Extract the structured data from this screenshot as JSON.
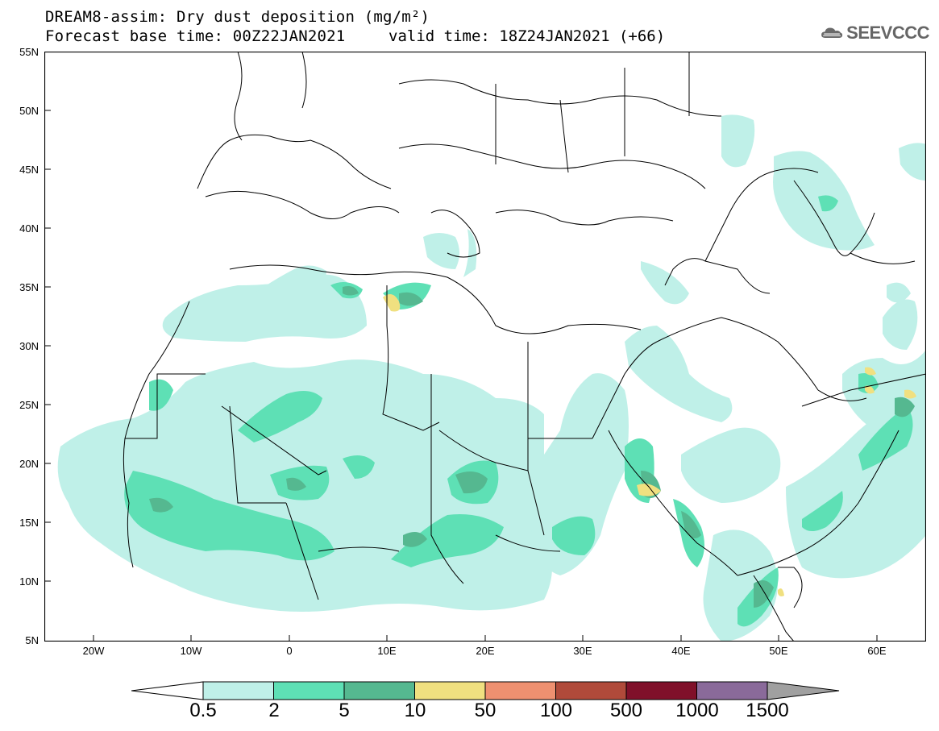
{
  "header": {
    "title": "DREAM8-assim: Dry dust deposition (mg/m²)",
    "base_time": "Forecast base time: 00Z22JAN2021",
    "valid_time": "valid time: 18Z24JAN2021 (+66)",
    "logo_text": "SEEVCCC",
    "logo_icon": "cloud-icon"
  },
  "axes": {
    "lat_labels": [
      "55N",
      "50N",
      "45N",
      "40N",
      "35N",
      "30N",
      "25N",
      "20N",
      "15N",
      "10N",
      "5N"
    ],
    "lon_labels": [
      "20W",
      "10W",
      "0",
      "10E",
      "20E",
      "30E",
      "40E",
      "50E",
      "60E"
    ]
  },
  "legend": {
    "labels": [
      "0.5",
      "2",
      "5",
      "10",
      "50",
      "100",
      "500",
      "1000",
      "1500"
    ],
    "colors": [
      "#bff0e8",
      "#5ee0b5",
      "#55b890",
      "#f0e080",
      "#ee9070",
      "#b04a3a",
      "#80102a",
      "#8a6a9a"
    ],
    "under_color": "#ffffff",
    "over_color": "#a0a0a0"
  },
  "colors": {
    "level_0_5": "#bff0e8",
    "level_2": "#5ee0b5",
    "level_5": "#55b890",
    "level_10": "#f0e080"
  }
}
